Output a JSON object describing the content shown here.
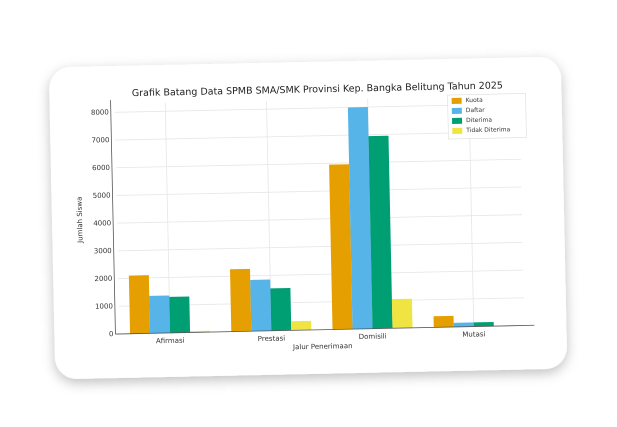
{
  "chart_data": {
    "type": "bar",
    "title": "Grafik Batang Data SPMB SMA/SMK Provinsi Kep. Bangka Belitung Tahun 2025",
    "x_label": "Jalur Penerimaan",
    "y_label": "Jumlah Siswa",
    "categories": [
      "Afirmasi",
      "Prestasi",
      "Domisili",
      "Mutasi"
    ],
    "series": [
      {
        "name": "Kuota",
        "color": "#e69f00",
        "values": [
          2100,
          2250,
          5950,
          400
        ]
      },
      {
        "name": "Daftar",
        "color": "#56b4e9",
        "values": [
          1350,
          1850,
          8000,
          150
        ]
      },
      {
        "name": "Diterima",
        "color": "#009e73",
        "values": [
          1300,
          1530,
          6950,
          150
        ]
      },
      {
        "name": "Tidak Diterima",
        "color": "#f0e442",
        "values": [
          50,
          330,
          1050,
          0
        ]
      }
    ],
    "ylim": [
      0,
      8300
    ],
    "yticks": [
      0,
      1000,
      2000,
      3000,
      4000,
      5000,
      6000,
      7000,
      8000
    ],
    "grid": true,
    "legend": "upper right"
  }
}
